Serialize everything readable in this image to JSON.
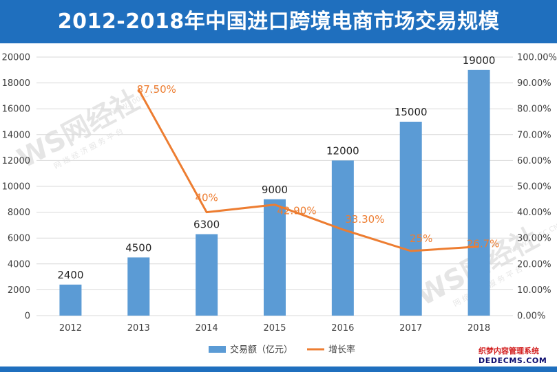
{
  "header": {
    "title": "2012-2018年中国进口跨境电商市场交易规模"
  },
  "chart_data": {
    "type": "bar",
    "title": "2012-2018年中国进口跨境电商市场交易规模",
    "categories": [
      "2012",
      "2013",
      "2014",
      "2015",
      "2016",
      "2017",
      "2018"
    ],
    "series": [
      {
        "name": "交易额（亿元）",
        "type": "bar",
        "axis": "left",
        "color": "#5b9bd5",
        "values": [
          2400,
          4500,
          6300,
          9000,
          12000,
          15000,
          19000
        ],
        "labels": [
          "2400",
          "4500",
          "6300",
          "9000",
          "12000",
          "15000",
          "19000"
        ]
      },
      {
        "name": "增长率",
        "type": "line",
        "axis": "right",
        "color": "#ed7d31",
        "values": [
          null,
          87.5,
          40,
          42.9,
          33.3,
          25,
          26.7
        ],
        "labels": [
          "",
          "87.50%",
          "40%",
          "42.90%",
          "33.30%",
          "25%",
          "26.7%"
        ]
      }
    ],
    "y_left": {
      "min": 0,
      "max": 20000,
      "step": 2000,
      "ticks": [
        "0",
        "2000",
        "4000",
        "6000",
        "8000",
        "10000",
        "12000",
        "14000",
        "16000",
        "18000",
        "20000"
      ]
    },
    "y_right": {
      "min": 0,
      "max": 100,
      "step": 10,
      "ticks": [
        "0.00%",
        "10.00%",
        "20.00%",
        "30.00%",
        "40.00%",
        "50.00%",
        "60.00%",
        "70.00%",
        "80.00%",
        "90.00%",
        "100.00%"
      ]
    },
    "grid": true,
    "legend_position": "bottom"
  },
  "watermarks": [
    {
      "logo": "WS网经社",
      "url": "WWW.100EC.CN",
      "tagline": "网 络 经 济 服 务 平 台"
    },
    {
      "logo": "WS网经社",
      "url": "WWW.100EC.CN",
      "tagline": "网 络 经 济 服 务 平 台"
    }
  ],
  "corner_watermark": {
    "line1": "织梦内容管理系统",
    "line2": "DEDECMS.COM"
  }
}
